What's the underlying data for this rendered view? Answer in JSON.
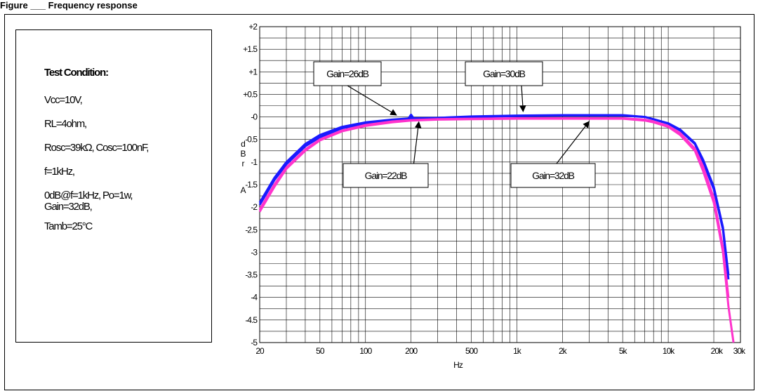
{
  "caption": "Figure ___ Frequency response",
  "conditions": {
    "title": "Test Condition:",
    "lines": [
      "Vcc=10V,",
      "RL=4ohm,",
      "Rosc=39kΩ, Cosc=100nF,",
      "f=1kHz,",
      "0dB@f=1kHz, Po=1w,",
      "Gain=32dB,",
      "Tamb=25°C"
    ]
  },
  "chart_data": {
    "type": "line",
    "xscale": "log",
    "xlabel": "Hz",
    "ylabel": "dBr A",
    "ylabel_chars": [
      "d",
      "B",
      "r",
      "A"
    ],
    "xlim": [
      20,
      30000
    ],
    "ylim": [
      -5,
      2
    ],
    "y_ticks": [
      2,
      1.5,
      1,
      0.5,
      0,
      -0.5,
      -1,
      -1.5,
      -2,
      -2.5,
      -3,
      -3.5,
      -4,
      -4.5,
      -5
    ],
    "y_tick_labels": [
      "+2",
      "+1.5",
      "+1",
      "+0.5",
      "-0",
      "-0.5",
      "-1",
      "-1.5",
      "-2",
      "-2.5",
      "-3",
      "-3.5",
      "-4",
      "-4.5",
      "-5"
    ],
    "x_ticks": [
      20,
      50,
      100,
      200,
      500,
      1000,
      2000,
      5000,
      10000,
      20000,
      30000
    ],
    "x_tick_labels": [
      "20",
      "50",
      "100",
      "200",
      "500",
      "1k",
      "2k",
      "5k",
      "10k",
      "20k",
      "30k"
    ],
    "grid": true,
    "series": [
      {
        "name": "Gain=26dB",
        "color": "#1a1aff",
        "x": [
          20,
          25,
          30,
          40,
          50,
          70,
          100,
          150,
          190,
          200,
          210,
          300,
          500,
          1000,
          2000,
          5000,
          7000,
          8000,
          10000,
          12000,
          15000,
          17000,
          20000,
          23000,
          25000
        ],
        "y": [
          -1.95,
          -1.4,
          -1.05,
          -0.65,
          -0.45,
          -0.25,
          -0.14,
          -0.08,
          -0.06,
          0.05,
          -0.05,
          -0.03,
          0.0,
          0.02,
          0.03,
          0.03,
          0.0,
          -0.05,
          -0.15,
          -0.3,
          -0.6,
          -1.0,
          -1.6,
          -2.5,
          -3.6
        ]
      },
      {
        "name": "Gain=30dB",
        "color": "#1a1aff",
        "x": [
          20,
          25,
          30,
          40,
          50,
          70,
          100,
          150,
          200,
          300,
          500,
          1000,
          2000,
          5000,
          7000,
          8000,
          10000,
          12000,
          15000,
          17000,
          20000,
          23000,
          25000
        ],
        "y": [
          -1.9,
          -1.35,
          -1.0,
          -0.6,
          -0.4,
          -0.22,
          -0.12,
          -0.06,
          -0.03,
          -0.02,
          0.01,
          0.03,
          0.04,
          0.04,
          0.0,
          -0.05,
          -0.14,
          -0.28,
          -0.58,
          -0.95,
          -1.55,
          -2.45,
          -3.5
        ]
      },
      {
        "name": "Gain=22dB",
        "color": "#ff33cc",
        "x": [
          20,
          25,
          30,
          40,
          50,
          70,
          100,
          150,
          200,
          300,
          500,
          1000,
          2000,
          5000,
          7000,
          8000,
          10000,
          12000,
          15000,
          17000,
          20000,
          23000,
          25000
        ],
        "y": [
          -2.05,
          -1.5,
          -1.12,
          -0.72,
          -0.5,
          -0.3,
          -0.18,
          -0.1,
          -0.07,
          -0.05,
          -0.04,
          -0.03,
          -0.03,
          -0.03,
          -0.06,
          -0.1,
          -0.2,
          -0.36,
          -0.7,
          -1.1,
          -1.8,
          -2.9,
          -4.0
        ]
      },
      {
        "name": "Gain=32dB",
        "color": "#ff33cc",
        "x": [
          20,
          25,
          30,
          40,
          50,
          70,
          100,
          150,
          200,
          300,
          500,
          1000,
          2000,
          5000,
          7000,
          8000,
          10000,
          12000,
          15000,
          17000,
          20000,
          23000,
          25000,
          27000
        ],
        "y": [
          -2.1,
          -1.55,
          -1.15,
          -0.75,
          -0.52,
          -0.32,
          -0.2,
          -0.12,
          -0.08,
          -0.06,
          -0.05,
          -0.04,
          -0.04,
          -0.04,
          -0.08,
          -0.12,
          -0.22,
          -0.4,
          -0.75,
          -1.2,
          -1.9,
          -3.0,
          -4.2,
          -5.0
        ]
      }
    ],
    "annotations": [
      {
        "text": "Gain=26dB",
        "target": [
          160,
          -0.02
        ]
      },
      {
        "text": "Gain=30dB",
        "target": [
          1100,
          0.06
        ]
      },
      {
        "text": "Gain=22dB",
        "target": [
          225,
          -0.05
        ]
      },
      {
        "text": "Gain=32dB",
        "target": [
          3000,
          -0.04
        ]
      }
    ]
  }
}
